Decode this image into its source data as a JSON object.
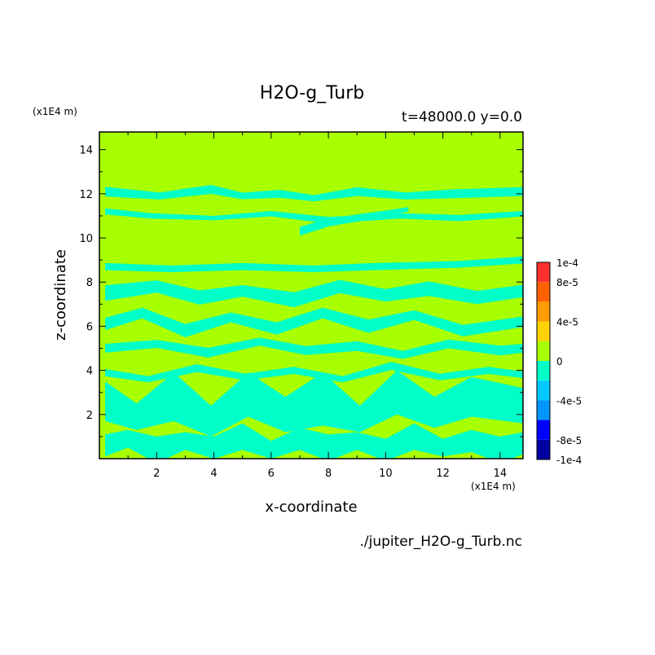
{
  "chart_data": {
    "type": "heatmap",
    "title": "H2O-g_Turb",
    "subtitle": "t=48000.0 y=0.0",
    "xlabel": "x-coordinate",
    "ylabel": "z-coordinate",
    "x_units": "(x1E4 m)",
    "y_units": "(x1E4 m)",
    "footer": "./jupiter_H2O-g_Turb.nc",
    "xlim": [
      0,
      14.8
    ],
    "ylim": [
      0,
      14.8
    ],
    "x_ticks": [
      "2",
      "4",
      "6",
      "8",
      "10",
      "12",
      "14"
    ],
    "y_ticks": [
      "2",
      "4",
      "6",
      "8",
      "10",
      "12",
      "14"
    ],
    "x_tick_values": [
      2,
      4,
      6,
      8,
      10,
      12,
      14
    ],
    "y_tick_values": [
      2,
      4,
      6,
      8,
      10,
      12,
      14
    ],
    "background_level": "0",
    "colorbar": {
      "labels": [
        "1e-4",
        "8e-5",
        "4e-5",
        "0",
        "-4e-5",
        "-8e-5",
        "-1e-4"
      ],
      "label_values": [
        0.0001,
        8e-05,
        4e-05,
        0,
        -4e-05,
        -8e-05,
        -0.0001
      ],
      "levels": [
        {
          "from": 8e-05,
          "to": 0.0001,
          "color": "#ff3030"
        },
        {
          "from": 6e-05,
          "to": 8e-05,
          "color": "#ff6000"
        },
        {
          "from": 4e-05,
          "to": 6e-05,
          "color": "#ff9c00"
        },
        {
          "from": 2e-05,
          "to": 4e-05,
          "color": "#ffd200"
        },
        {
          "from": 0,
          "to": 2e-05,
          "color": "#a8ff00"
        },
        {
          "from": -2e-05,
          "to": 0,
          "color": "#00ffc8"
        },
        {
          "from": -4e-05,
          "to": -2e-05,
          "color": "#00c8ff"
        },
        {
          "from": -6e-05,
          "to": -4e-05,
          "color": "#0096ff"
        },
        {
          "from": -8e-05,
          "to": -6e-05,
          "color": "#0000ff"
        },
        {
          "from": -0.0001,
          "to": -8e-05,
          "color": "#0000a0"
        }
      ]
    },
    "negative_regions": [
      {
        "x": [
          0.2,
          2.1,
          3.9,
          5.0,
          6.3,
          7.5,
          9.0,
          10.7,
          12.4,
          14.8
        ],
        "z": [
          12.1,
          11.9,
          12.2,
          11.9,
          12.0,
          11.8,
          12.1,
          11.9,
          12.0,
          12.1
        ],
        "w": [
          0.22,
          0.16,
          0.2,
          0.15,
          0.18,
          0.14,
          0.2,
          0.16,
          0.2,
          0.2
        ]
      },
      {
        "x": [
          0.2,
          1.8,
          4.0,
          6.0,
          8.0,
          10.5,
          12.6,
          14.8
        ],
        "z": [
          11.2,
          11.0,
          10.9,
          11.1,
          10.8,
          11.0,
          10.9,
          11.1
        ],
        "w": [
          0.14,
          0.12,
          0.1,
          0.12,
          0.15,
          0.12,
          0.14,
          0.12
        ]
      },
      {
        "x": [
          7.0,
          8.0,
          9.0,
          10.0,
          10.8
        ],
        "z": [
          10.3,
          10.7,
          10.9,
          11.1,
          11.3
        ],
        "w": [
          0.2,
          0.18,
          0.16,
          0.14,
          0.1
        ]
      },
      {
        "x": [
          0.2,
          2.5,
          5.0,
          7.5,
          9.6,
          12.5,
          14.8
        ],
        "z": [
          8.7,
          8.6,
          8.7,
          8.6,
          8.7,
          8.8,
          9.0
        ],
        "w": [
          0.16,
          0.15,
          0.16,
          0.15,
          0.16,
          0.15,
          0.16
        ]
      },
      {
        "x": [
          0.2,
          2.0,
          3.5,
          5.0,
          6.8,
          8.4,
          10.0,
          11.5,
          13.2,
          14.8
        ],
        "z": [
          7.5,
          7.8,
          7.3,
          7.6,
          7.2,
          7.8,
          7.4,
          7.7,
          7.3,
          7.6
        ],
        "w": [
          0.35,
          0.28,
          0.32,
          0.26,
          0.34,
          0.3,
          0.28,
          0.33,
          0.3,
          0.28
        ]
      },
      {
        "x": [
          0.2,
          1.5,
          3.0,
          4.6,
          6.2,
          7.8,
          9.4,
          11.0,
          12.7,
          14.8
        ],
        "z": [
          6.1,
          6.6,
          5.8,
          6.4,
          5.9,
          6.6,
          6.0,
          6.5,
          5.8,
          6.2
        ],
        "w": [
          0.28,
          0.24,
          0.3,
          0.22,
          0.28,
          0.24,
          0.3,
          0.22,
          0.26,
          0.24
        ]
      },
      {
        "x": [
          0.2,
          2.0,
          3.8,
          5.6,
          7.2,
          9.0,
          10.6,
          12.2,
          14.0,
          14.8
        ],
        "z": [
          5.0,
          5.2,
          4.8,
          5.3,
          4.9,
          5.1,
          4.7,
          5.2,
          4.9,
          5.0
        ],
        "w": [
          0.2,
          0.18,
          0.22,
          0.18,
          0.2,
          0.22,
          0.18,
          0.2,
          0.22,
          0.2
        ]
      },
      {
        "x": [
          0.2,
          1.7,
          3.4,
          5.1,
          6.8,
          8.5,
          10.2,
          11.9,
          13.6,
          14.8
        ],
        "z": [
          3.9,
          3.6,
          4.1,
          3.7,
          4.0,
          3.6,
          4.2,
          3.7,
          4.0,
          3.8
        ],
        "w": [
          0.16,
          0.14,
          0.18,
          0.15,
          0.16,
          0.14,
          0.18,
          0.15,
          0.16,
          0.15
        ]
      },
      {
        "x": [
          0.2,
          1.3,
          2.6,
          3.9,
          5.2,
          6.5,
          7.8,
          9.1,
          10.4,
          11.7,
          13.0,
          14.8
        ],
        "z": [
          2.6,
          1.9,
          2.8,
          1.7,
          2.9,
          2.0,
          2.7,
          1.8,
          3.0,
          2.1,
          2.8,
          2.4
        ],
        "w": [
          0.9,
          0.6,
          1.1,
          0.7,
          1.0,
          0.8,
          1.2,
          0.6,
          1.0,
          0.7,
          0.9,
          0.8
        ]
      },
      {
        "x": [
          0.2,
          1.0,
          2.0,
          3.0,
          4.0,
          5.0,
          6.0,
          7.0,
          8.0,
          9.0,
          10.0,
          11.0,
          12.0,
          13.0,
          14.0,
          14.8
        ],
        "z": [
          0.6,
          0.9,
          0.4,
          0.8,
          0.5,
          1.0,
          0.4,
          0.9,
          0.5,
          0.8,
          0.4,
          1.0,
          0.5,
          0.8,
          0.4,
          0.7
        ],
        "w": [
          0.5,
          0.4,
          0.6,
          0.4,
          0.5,
          0.6,
          0.4,
          0.5,
          0.6,
          0.4,
          0.5,
          0.6,
          0.4,
          0.5,
          0.6,
          0.5
        ]
      }
    ]
  }
}
